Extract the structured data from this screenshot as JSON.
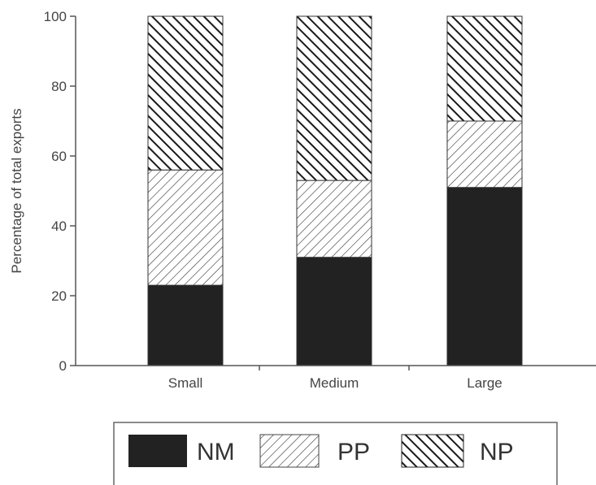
{
  "chart_data": {
    "type": "bar",
    "stacked": true,
    "categories": [
      "Small",
      "Medium",
      "Large"
    ],
    "series": [
      {
        "name": "NM",
        "values": [
          23,
          31,
          51
        ],
        "pattern": "solid"
      },
      {
        "name": "PP",
        "values": [
          33,
          22,
          19
        ],
        "pattern": "hatch-forward"
      },
      {
        "name": "NP",
        "values": [
          44,
          47,
          30
        ],
        "pattern": "hatch-backward"
      }
    ],
    "ylabel": "Percentage of total exports",
    "xlabel": "",
    "ylim": [
      0,
      100
    ],
    "yticks": [
      "0",
      "20",
      "40",
      "60",
      "80",
      "100"
    ],
    "grid": false,
    "legend_position": "bottom",
    "colors": {
      "bar": "#222222",
      "hatch": "#222222",
      "background": "#ffffff"
    }
  }
}
